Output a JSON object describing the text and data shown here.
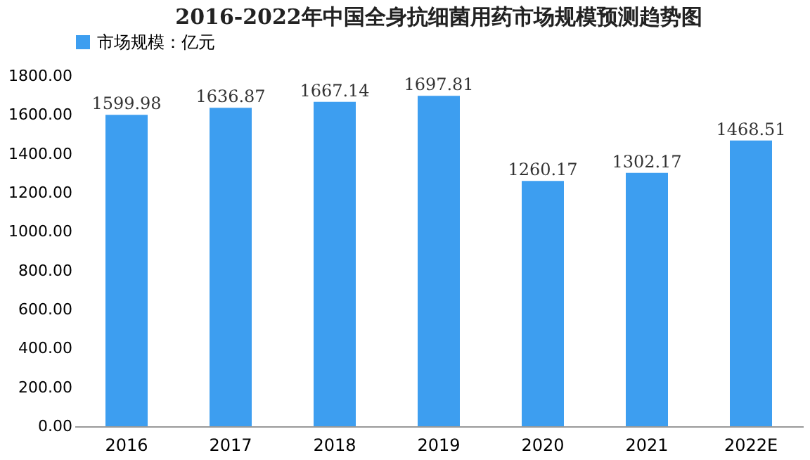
{
  "chart_data": {
    "type": "bar",
    "title": "2016-2022年中国全身抗细菌用药市场规模预测趋势图",
    "categories": [
      "2016",
      "2017",
      "2018",
      "2019",
      "2020",
      "2021",
      "2022E"
    ],
    "series": [
      {
        "name": "市场规模：亿元",
        "color": "#3d9ef0",
        "values": [
          1599.98,
          1636.87,
          1667.14,
          1697.81,
          1260.17,
          1302.17,
          1468.51
        ]
      }
    ],
    "ylim": [
      0,
      1800
    ],
    "yticks": [
      {
        "value": 0,
        "label": "0.00"
      },
      {
        "value": 200,
        "label": "200.00"
      },
      {
        "value": 400,
        "label": "400.00"
      },
      {
        "value": 600,
        "label": "600.00"
      },
      {
        "value": 800,
        "label": "800.00"
      },
      {
        "value": 1000,
        "label": "1000.00"
      },
      {
        "value": 1200,
        "label": "1200.00"
      },
      {
        "value": 1400,
        "label": "1400.00"
      },
      {
        "value": 1600,
        "label": "1600.00"
      },
      {
        "value": 1800,
        "label": "1800.00"
      }
    ],
    "data_labels": true,
    "legend": "top",
    "grid": false
  }
}
